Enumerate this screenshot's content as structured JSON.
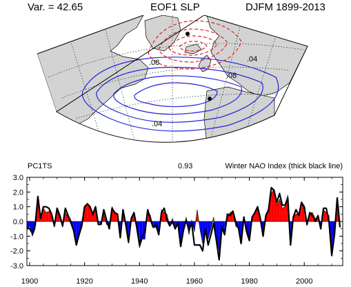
{
  "header": {
    "variance": "Var. = 42.65",
    "title": "EOF1 SLP",
    "period": "DJFM 1899-2013"
  },
  "map": {
    "contour_labels": [
      ".08",
      ".08",
      ".04",
      ".04"
    ],
    "colors": {
      "land": "#d3d3d3",
      "ocean": "#ffffff",
      "positive_contour": "#2222dd",
      "negative_contour": "#dd2222"
    }
  },
  "chart_data": {
    "type": "area",
    "left_label": "PC1TS",
    "center_label": "0.93",
    "right_label": "Winter NAO Index (thick black line)",
    "xlim": [
      1899,
      2014
    ],
    "ylim": [
      -3.0,
      3.0
    ],
    "x_ticks": [
      "1900",
      "1920",
      "1940",
      "1960",
      "1980",
      "2000"
    ],
    "y_ticks": [
      "3.0",
      "2.0",
      "1.0",
      "0.0",
      "-1.0",
      "-2.0",
      "-3.0"
    ],
    "positive_color": "#ff0000",
    "negative_color": "#0000ff",
    "years": [
      1899,
      1900,
      1901,
      1902,
      1903,
      1904,
      1905,
      1906,
      1907,
      1908,
      1909,
      1910,
      1911,
      1912,
      1913,
      1914,
      1915,
      1916,
      1917,
      1918,
      1919,
      1920,
      1921,
      1922,
      1923,
      1924,
      1925,
      1926,
      1927,
      1928,
      1929,
      1930,
      1931,
      1932,
      1933,
      1934,
      1935,
      1936,
      1937,
      1938,
      1939,
      1940,
      1941,
      1942,
      1943,
      1944,
      1945,
      1946,
      1947,
      1948,
      1949,
      1950,
      1951,
      1952,
      1953,
      1954,
      1955,
      1956,
      1957,
      1958,
      1959,
      1960,
      1961,
      1962,
      1963,
      1964,
      1965,
      1966,
      1967,
      1968,
      1969,
      1970,
      1971,
      1972,
      1973,
      1974,
      1975,
      1976,
      1977,
      1978,
      1979,
      1980,
      1981,
      1982,
      1983,
      1984,
      1985,
      1986,
      1987,
      1988,
      1989,
      1990,
      1991,
      1992,
      1993,
      1994,
      1995,
      1996,
      1997,
      1998,
      1999,
      2000,
      2001,
      2002,
      2003,
      2004,
      2005,
      2006,
      2007,
      2008,
      2009,
      2010,
      2011,
      2012,
      2013
    ],
    "series": [
      {
        "name": "PC1TS",
        "style": "filled",
        "values": [
          -0.6,
          -0.3,
          -1.0,
          -0.5,
          1.6,
          0.3,
          0.9,
          0.6,
          0.7,
          0.5,
          -0.4,
          0.7,
          0.3,
          -0.4,
          0.6,
          0.3,
          -0.2,
          -0.7,
          -1.5,
          -0.8,
          0.0,
          0.9,
          1.2,
          0.9,
          0.4,
          0.9,
          0.0,
          -0.2,
          0.5,
          -0.2,
          -0.3,
          1.0,
          0.6,
          0.5,
          -1.0,
          0.5,
          -0.3,
          -1.5,
          0.3,
          0.6,
          -0.5,
          -1.8,
          -1.2,
          -1.2,
          0.7,
          0.4,
          -0.4,
          -0.4,
          -0.9,
          0.8,
          0.6,
          0.5,
          -0.3,
          0.2,
          -0.4,
          -0.3,
          -1.4,
          -0.6,
          0.3,
          -0.9,
          0.1,
          -0.7,
          0.8,
          -0.5,
          -1.5,
          -0.5,
          -1.2,
          -0.5,
          0.3,
          -1.1,
          -2.0,
          -0.3,
          -0.8,
          0.4,
          0.6,
          0.7,
          -0.3,
          -0.5,
          -1.2,
          0.3,
          -0.4,
          -1.2,
          0.1,
          0.7,
          0.8,
          0.4,
          -0.9,
          0.5,
          0.6,
          1.9,
          2.2,
          1.1,
          1.5,
          0.9,
          1.0,
          1.8,
          -1.3,
          0.3,
          0.5,
          0.5,
          1.2,
          0.8,
          -0.3,
          0.6,
          0.6,
          0.2,
          0.3,
          -0.5,
          0.8,
          0.6,
          0.4,
          -2.4,
          -0.9,
          1.4,
          -0.3
        ]
      },
      {
        "name": "Winter NAO Index",
        "style": "thick-black-line",
        "values": [
          -0.4,
          -0.5,
          -0.8,
          -0.3,
          1.7,
          0.2,
          1.0,
          1.0,
          0.9,
          0.5,
          -0.3,
          0.9,
          0.4,
          -0.3,
          0.9,
          0.4,
          0.0,
          -0.6,
          -1.6,
          -0.9,
          -0.3,
          1.0,
          1.2,
          1.0,
          0.5,
          1.0,
          -0.2,
          -0.2,
          0.8,
          0.1,
          -0.5,
          0.9,
          0.6,
          0.5,
          -1.1,
          0.8,
          -0.2,
          -1.4,
          0.2,
          0.6,
          -0.4,
          -1.6,
          -1.0,
          -0.7,
          0.8,
          0.1,
          -0.4,
          -0.2,
          -0.9,
          0.6,
          0.9,
          0.1,
          -0.3,
          0.0,
          -0.5,
          -0.1,
          -1.7,
          -0.6,
          0.1,
          -0.6,
          -0.1,
          -1.6,
          -1.6,
          -1.6,
          -2.0,
          -0.5,
          -1.6,
          -0.9,
          -0.1,
          -1.3,
          -2.6,
          -0.4,
          -0.9,
          0.5,
          0.4,
          0.7,
          0.0,
          -0.4,
          -1.5,
          0.3,
          -0.7,
          -1.3,
          0.3,
          0.6,
          1.0,
          0.2,
          -1.0,
          0.4,
          0.8,
          2.3,
          2.1,
          1.3,
          1.9,
          1.1,
          1.1,
          1.6,
          -1.6,
          0.3,
          0.8,
          0.4,
          1.3,
          1.0,
          -0.2,
          0.6,
          0.4,
          0.0,
          0.4,
          -0.5,
          0.9,
          0.9,
          0.0,
          -2.3,
          -0.9,
          1.6,
          -0.4
        ]
      }
    ]
  }
}
